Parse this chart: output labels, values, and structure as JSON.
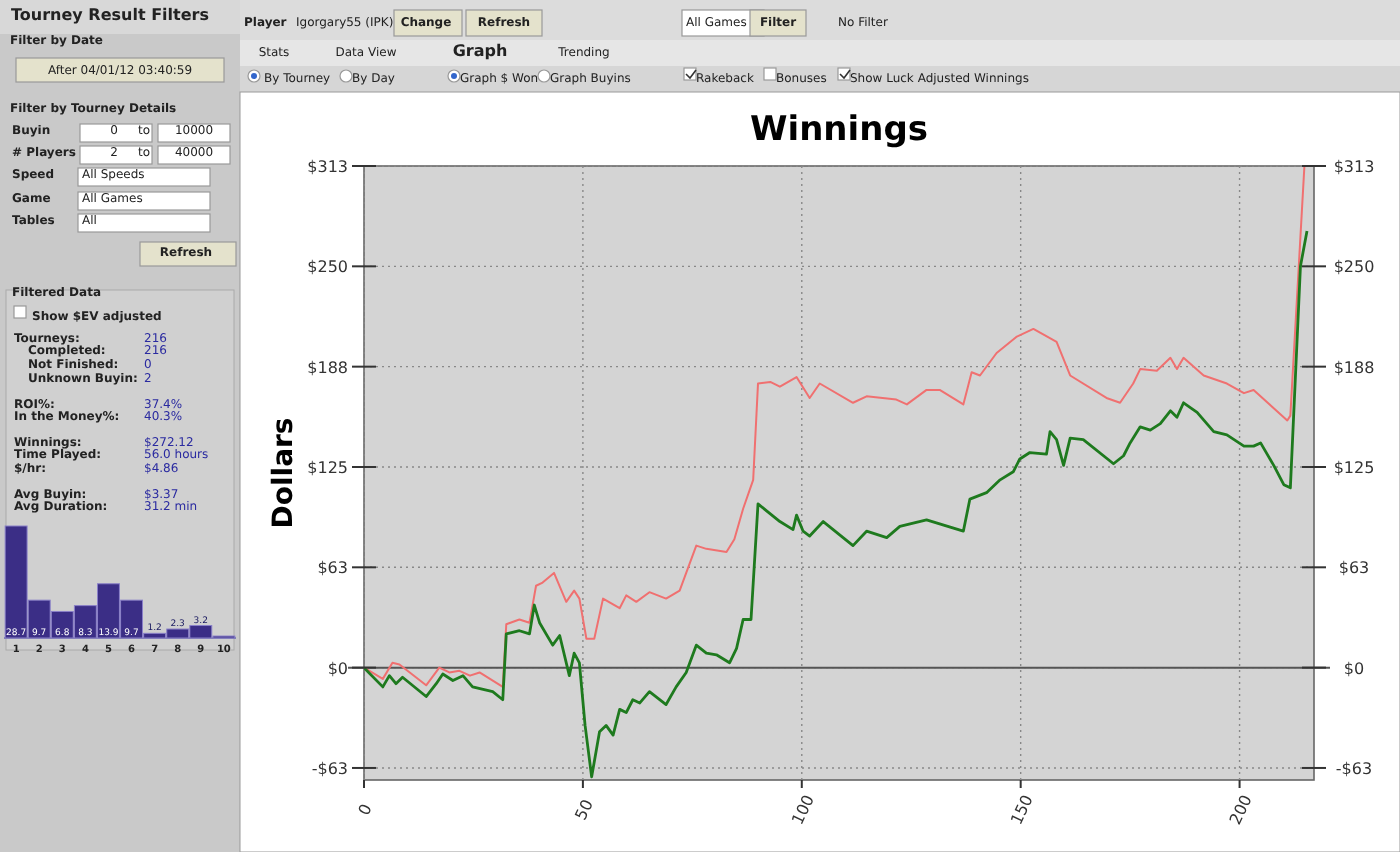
{
  "chart_data": [
    {
      "type": "other",
      "annotations": [
        "Tourney Result Filters",
        "Filter by Date",
        "After 04/01/12 03:40:59",
        "Filter by Tourney Details",
        "Buyin",
        "0",
        "to",
        "10000",
        "# Players",
        "2",
        "to",
        "40000",
        "Speed",
        "All Speeds",
        "Game",
        "All Games",
        "Tables",
        "All",
        "Refresh",
        "Filtered Data",
        "Show $EV adjusted",
        "Tourneys:",
        "216",
        "Completed:",
        "216",
        "Not Finished:",
        "0",
        "Unknown Buyin:",
        "2",
        "ROI%:",
        "37.4%",
        "In the Money%:",
        "40.3%",
        "Winnings:",
        "$272.12",
        "Time Played:",
        "56.0 hours",
        "$/hr:",
        "$4.86",
        "Avg Buyin:",
        "$3.37",
        "Avg Duration:",
        "31.2 min",
        "Player",
        "Igorgary55 (IPK)",
        "Change",
        "Refresh",
        "All Games",
        "Filter",
        "No Filter",
        "Stats",
        "Data View",
        "Graph",
        "Trending",
        "By Tourney",
        "By Day",
        "Graph $ Won",
        "Graph Buyins",
        "Rakeback",
        "Bonuses",
        "Show Luck Adjusted Winnings"
      ]
    },
    {
      "type": "line",
      "title": "Winnings",
      "ylabel": "Dollars",
      "xlim": [
        0,
        217
      ],
      "xticks": [
        0,
        50,
        100,
        150,
        200
      ],
      "ylim": [
        -70,
        312.5
      ],
      "yticks": [
        {
          "value": -62.5,
          "label": "-$63"
        },
        {
          "value": 0,
          "label": "$0"
        },
        {
          "value": 62.5,
          "label": "$63"
        },
        {
          "value": 125,
          "label": "$125"
        },
        {
          "value": 187.5,
          "label": "$188"
        },
        {
          "value": 250,
          "label": "$250"
        },
        {
          "value": 312.5,
          "label": "$313"
        }
      ],
      "y2lim": [
        -70,
        312.5
      ],
      "y2ticks": [
        {
          "value": -62.5,
          "label": "-$63"
        },
        {
          "value": 0,
          "label": "$0"
        },
        {
          "value": 62.5,
          "label": "$63"
        },
        {
          "value": 125,
          "label": "$125"
        },
        {
          "value": 187.5,
          "label": "$188"
        },
        {
          "value": 250,
          "label": "$250"
        },
        {
          "value": 312.5,
          "label": "$313"
        }
      ],
      "grid": true,
      "ref_lines": [
        {
          "axis": "y",
          "value": 0,
          "color": "#555555"
        }
      ],
      "series": [
        {
          "color": "#f07070",
          "x": [
            0,
            4.3,
            6.5,
            8.1,
            14.2,
            17.2,
            19.5,
            21.8,
            24.2,
            26.4,
            31.7,
            32.5,
            35.5,
            37.8,
            39.3,
            40.8,
            43.4,
            46.2,
            48,
            49.2,
            50.8,
            52.6,
            54.6,
            58.4,
            59.9,
            62.2,
            65.2,
            69,
            72.1,
            75.9,
            78.2,
            82.8,
            84.6,
            86.6,
            88.9,
            90,
            92.8,
            95,
            98.8,
            101.8,
            104.1,
            111.7,
            114.8,
            121.6,
            124,
            128.5,
            131.5,
            136.9,
            138.8,
            140.7,
            144.5,
            149,
            152.9,
            158.2,
            161.3,
            169.6,
            172.7,
            175.7,
            177.3,
            181.1,
            184.2,
            185.7,
            187.2,
            191.8,
            197.1,
            201,
            203.2,
            210.9,
            211.6,
            214.8
          ],
          "values": [
            0,
            -7,
            3,
            2,
            -11,
            0,
            -3,
            -2,
            -5,
            -3,
            -12,
            27,
            30,
            28,
            51,
            53,
            59,
            41,
            48,
            43,
            18,
            18,
            43,
            37,
            45,
            41,
            47,
            43,
            48,
            76,
            74,
            72,
            80,
            99,
            117,
            177,
            178,
            175,
            181,
            168,
            177,
            165,
            169,
            167,
            164,
            173,
            173,
            164,
            184,
            182,
            196,
            206,
            211,
            203,
            182,
            168,
            165,
            177,
            186,
            185,
            193,
            186,
            193,
            182,
            177,
            171,
            173,
            154,
            157,
            312
          ]
        },
        {
          "color": "#1e7a1e",
          "x": [
            0,
            4.3,
            5.8,
            7.3,
            8.8,
            14.2,
            16.5,
            18,
            20.3,
            22.6,
            24.8,
            29.4,
            31.7,
            32.5,
            35.5,
            37.8,
            38.9,
            40.1,
            43.1,
            44.7,
            46.9,
            48,
            49.2,
            50.5,
            52,
            53.8,
            55.3,
            56.9,
            58.4,
            59.9,
            61.4,
            63,
            65.2,
            69,
            71.3,
            73.6,
            75.9,
            78.2,
            80.5,
            83.5,
            85.1,
            86.6,
            88.4,
            90,
            95,
            98,
            98.8,
            100.3,
            101.8,
            104.9,
            111.7,
            114.8,
            119.4,
            122.4,
            128.5,
            136.9,
            138.4,
            142.2,
            145.3,
            148.3,
            149.8,
            152.1,
            155.9,
            156.7,
            158.2,
            159.8,
            161.3,
            164.3,
            171.2,
            173.5,
            175,
            177.3,
            179.6,
            181.9,
            184.2,
            185.7,
            187.2,
            190.3,
            194.1,
            197.1,
            201,
            203.2,
            204.8,
            207.8,
            210.1,
            211.6,
            213.9,
            215.4
          ],
          "values": [
            0,
            -12,
            -5,
            -10,
            -6,
            -18,
            -10,
            -4,
            -8,
            -5,
            -12,
            -15,
            -20,
            21,
            23,
            21,
            39,
            28,
            14,
            20,
            -5,
            9,
            3,
            -36,
            -68,
            -40,
            -36,
            -42,
            -26,
            -28,
            -20,
            -22,
            -15,
            -23,
            -12,
            -3,
            14,
            9,
            8,
            3,
            12,
            30,
            30,
            102,
            91,
            86,
            95,
            85,
            82,
            91,
            76,
            85,
            81,
            88,
            92,
            85,
            105,
            109,
            117,
            122,
            130,
            134,
            133,
            147,
            142,
            126,
            143,
            142,
            127,
            132,
            140,
            150,
            148,
            152,
            160,
            156,
            165,
            159,
            147,
            145,
            138,
            138,
            140,
            126,
            114,
            112,
            250,
            272
          ]
        }
      ]
    },
    {
      "type": "bar",
      "categories": [
        "1",
        "2",
        "3",
        "4",
        "5",
        "6",
        "7",
        "8",
        "9",
        "10"
      ],
      "values": [
        28.7,
        9.7,
        6.8,
        8.3,
        13.9,
        9.7,
        1.2,
        2.3,
        3.2,
        0.5
      ],
      "value_labels": [
        "28.7",
        "9.7",
        "6.8",
        "8.3",
        "13.9",
        "9.7",
        "1.2",
        "2.3",
        "3.2",
        null
      ],
      "color": "#3b2e86"
    }
  ]
}
